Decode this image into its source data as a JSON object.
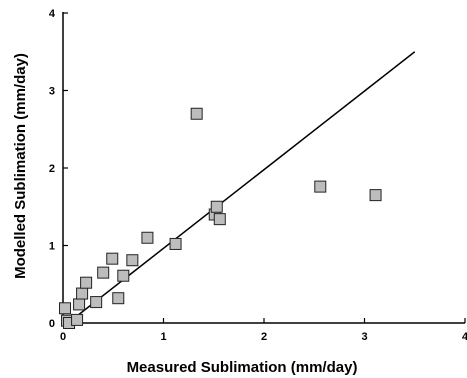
{
  "chart_data": {
    "type": "scatter",
    "xlabel": "Measured Sublimation (mm/day)",
    "ylabel": "Modelled Sublimation (mm/day)",
    "xlim": [
      0,
      4
    ],
    "ylim": [
      0,
      4
    ],
    "x_ticks": [
      "0",
      "1",
      "2",
      "3",
      "4"
    ],
    "y_ticks": [
      "0",
      "1",
      "2",
      "3",
      "4"
    ],
    "grid": false,
    "marker": "square",
    "marker_fill": "#bdbdbd",
    "points": [
      {
        "x": 0.02,
        "y": 0.19
      },
      {
        "x": 0.04,
        "y": 0.03
      },
      {
        "x": 0.06,
        "y": 0.0
      },
      {
        "x": 0.14,
        "y": 0.04
      },
      {
        "x": 0.16,
        "y": 0.24
      },
      {
        "x": 0.19,
        "y": 0.38
      },
      {
        "x": 0.23,
        "y": 0.52
      },
      {
        "x": 0.33,
        "y": 0.27
      },
      {
        "x": 0.4,
        "y": 0.65
      },
      {
        "x": 0.49,
        "y": 0.83
      },
      {
        "x": 0.55,
        "y": 0.32
      },
      {
        "x": 0.6,
        "y": 0.61
      },
      {
        "x": 0.69,
        "y": 0.81
      },
      {
        "x": 0.84,
        "y": 1.1
      },
      {
        "x": 1.12,
        "y": 1.02
      },
      {
        "x": 1.33,
        "y": 2.7
      },
      {
        "x": 1.51,
        "y": 1.4
      },
      {
        "x": 1.53,
        "y": 1.5
      },
      {
        "x": 1.56,
        "y": 1.34
      },
      {
        "x": 2.56,
        "y": 1.76
      },
      {
        "x": 3.11,
        "y": 1.65
      }
    ],
    "fit_line": {
      "x": [
        0.05,
        3.5
      ],
      "y": [
        0.0,
        3.5
      ]
    }
  }
}
